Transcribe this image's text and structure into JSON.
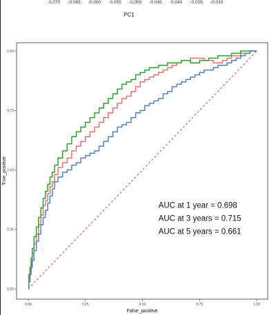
{
  "top_axis": {
    "title": "PC1",
    "tick_labels": [
      "-0.070",
      "-0.065",
      "-0.060",
      "-0.055",
      "-0.050",
      "-0.045",
      "-0.040",
      "-0.035",
      "-0.030"
    ]
  },
  "chart_data": {
    "type": "line",
    "xlabel": "False_positive",
    "ylabel": "True_positive",
    "xlim": [
      0,
      1
    ],
    "ylim": [
      0,
      1
    ],
    "x_ticks": [
      0,
      0.25,
      0.5,
      0.75,
      1
    ],
    "x_tick_labels": [
      "0.00",
      "0.25",
      "0.50",
      "0.75",
      "1.00"
    ],
    "y_ticks": [
      0,
      0.25,
      0.5,
      0.75,
      1
    ],
    "y_tick_labels": [
      "0.00",
      "0.25",
      "0.50",
      "0.75",
      "1.00"
    ],
    "grid": false,
    "diagonal_reference": {
      "from": [
        0,
        0
      ],
      "to": [
        1,
        1
      ],
      "color": "#e06666",
      "style": "dashed"
    },
    "annotations": [
      {
        "text": "AUC at 1 year = 0.698",
        "x": 0.57,
        "y": 0.34
      },
      {
        "text": "AUC at 3 years = 0.715",
        "x": 0.57,
        "y": 0.285
      },
      {
        "text": "AUC at 5 years = 0.661",
        "x": 0.57,
        "y": 0.23
      }
    ],
    "series": [
      {
        "color": "#e8736b",
        "x": [
          0,
          0.005,
          0.01,
          0.015,
          0.02,
          0.03,
          0.04,
          0.05,
          0.06,
          0.07,
          0.08,
          0.09,
          0.1,
          0.11,
          0.12,
          0.14,
          0.16,
          0.18,
          0.2,
          0.22,
          0.24,
          0.26,
          0.28,
          0.3,
          0.32,
          0.34,
          0.36,
          0.38,
          0.4,
          0.42,
          0.44,
          0.46,
          0.48,
          0.5,
          0.52,
          0.54,
          0.56,
          0.58,
          0.6,
          0.62,
          0.64,
          0.66,
          0.68,
          0.7,
          0.72,
          0.74,
          0.76,
          0.78,
          0.8,
          0.82,
          0.84,
          0.86,
          0.88,
          0.9,
          0.92,
          0.94,
          0.96,
          0.98,
          1
        ],
        "y": [
          0,
          0.05,
          0.08,
          0.11,
          0.15,
          0.19,
          0.23,
          0.27,
          0.31,
          0.35,
          0.37,
          0.4,
          0.43,
          0.45,
          0.48,
          0.51,
          0.53,
          0.55,
          0.58,
          0.6,
          0.62,
          0.64,
          0.66,
          0.68,
          0.7,
          0.72,
          0.74,
          0.76,
          0.78,
          0.8,
          0.81,
          0.83,
          0.85,
          0.87,
          0.88,
          0.89,
          0.9,
          0.91,
          0.92,
          0.93,
          0.94,
          0.95,
          0.96,
          0.96,
          0.97,
          0.97,
          0.97,
          0.96,
          0.96,
          0.95,
          0.95,
          0.96,
          0.97,
          0.98,
          0.98,
          0.99,
          0.99,
          1.0,
          1.0
        ]
      },
      {
        "color": "#2ca02c",
        "x": [
          0,
          0.005,
          0.01,
          0.015,
          0.02,
          0.03,
          0.04,
          0.05,
          0.06,
          0.07,
          0.08,
          0.09,
          0.1,
          0.11,
          0.12,
          0.14,
          0.16,
          0.18,
          0.2,
          0.22,
          0.24,
          0.26,
          0.28,
          0.3,
          0.32,
          0.34,
          0.36,
          0.38,
          0.4,
          0.42,
          0.44,
          0.46,
          0.48,
          0.5,
          0.52,
          0.54,
          0.56,
          0.58,
          0.6,
          0.62,
          0.64,
          0.66,
          0.68,
          0.7,
          0.72,
          0.74,
          0.76,
          0.78,
          0.8,
          0.82,
          0.84,
          0.86,
          0.88,
          0.9,
          0.92,
          0.94,
          0.96,
          0.98,
          1
        ],
        "y": [
          0,
          0.06,
          0.09,
          0.13,
          0.17,
          0.22,
          0.26,
          0.3,
          0.34,
          0.38,
          0.41,
          0.44,
          0.47,
          0.49,
          0.52,
          0.55,
          0.58,
          0.61,
          0.64,
          0.66,
          0.68,
          0.7,
          0.72,
          0.74,
          0.76,
          0.78,
          0.8,
          0.82,
          0.84,
          0.86,
          0.87,
          0.88,
          0.9,
          0.91,
          0.92,
          0.93,
          0.93,
          0.94,
          0.94,
          0.95,
          0.95,
          0.95,
          0.96,
          0.96,
          0.95,
          0.95,
          0.96,
          0.96,
          0.97,
          0.97,
          0.98,
          0.98,
          0.98,
          0.99,
          0.99,
          1.0,
          1.0,
          1.0,
          1.0
        ]
      },
      {
        "color": "#4f81bd",
        "x": [
          0,
          0.005,
          0.01,
          0.015,
          0.02,
          0.03,
          0.04,
          0.05,
          0.06,
          0.07,
          0.08,
          0.09,
          0.1,
          0.11,
          0.12,
          0.14,
          0.16,
          0.18,
          0.2,
          0.22,
          0.24,
          0.26,
          0.28,
          0.3,
          0.32,
          0.34,
          0.36,
          0.38,
          0.4,
          0.42,
          0.44,
          0.46,
          0.48,
          0.5,
          0.52,
          0.54,
          0.56,
          0.58,
          0.6,
          0.62,
          0.64,
          0.66,
          0.68,
          0.7,
          0.72,
          0.74,
          0.76,
          0.78,
          0.8,
          0.82,
          0.84,
          0.86,
          0.88,
          0.9,
          0.92,
          0.94,
          0.96,
          0.98,
          1
        ],
        "y": [
          0,
          0.03,
          0.06,
          0.09,
          0.12,
          0.16,
          0.2,
          0.23,
          0.27,
          0.3,
          0.33,
          0.36,
          0.39,
          0.42,
          0.45,
          0.47,
          0.49,
          0.5,
          0.52,
          0.53,
          0.55,
          0.56,
          0.57,
          0.58,
          0.6,
          0.62,
          0.64,
          0.66,
          0.68,
          0.69,
          0.7,
          0.72,
          0.74,
          0.75,
          0.77,
          0.78,
          0.79,
          0.8,
          0.82,
          0.83,
          0.85,
          0.86,
          0.87,
          0.88,
          0.89,
          0.9,
          0.91,
          0.92,
          0.92,
          0.93,
          0.94,
          0.94,
          0.95,
          0.96,
          0.97,
          0.98,
          0.99,
          1.0,
          1.0
        ]
      }
    ]
  }
}
